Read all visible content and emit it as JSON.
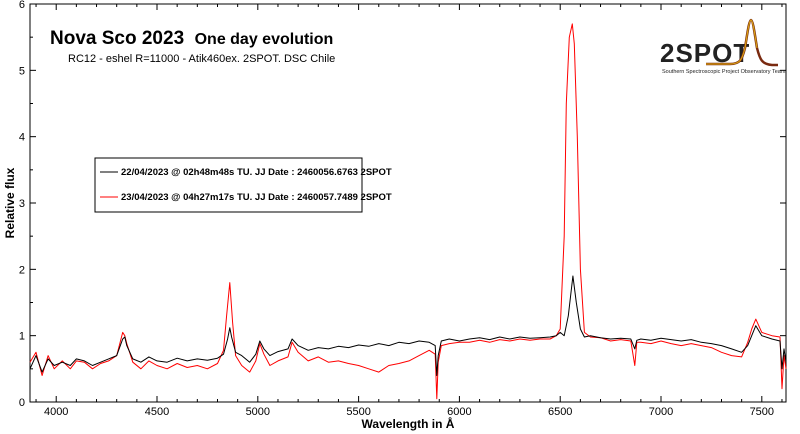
{
  "chart_data": {
    "type": "line",
    "title": "Nova Sco 2023",
    "subtitle": "One day evolution",
    "info": "RC12 - eshel R=11000 - Atik460ex. 2SPOT. DSC Chile",
    "xlabel": "Wavelength in Å",
    "ylabel": "Relative flux",
    "xlim": [
      3870,
      7620
    ],
    "ylim": [
      0,
      6
    ],
    "x_ticks": [
      "4000",
      "4500",
      "5000",
      "5500",
      "6000",
      "6500",
      "7000",
      "7500"
    ],
    "y_ticks": [
      "0",
      "1",
      "2",
      "3",
      "4",
      "5",
      "6"
    ],
    "grid": false,
    "legend_position": "upper-left",
    "colors": {
      "series_1": "#000000",
      "series_2": "#ff0000"
    },
    "logo": {
      "text": "2SPOT",
      "caption": "Southern Spectroscopic Project Observatory Team"
    },
    "series": [
      {
        "name": "22/04/2023 @ 02h48m48s TU.  JJ Date : 2460056.6763 2SPOT",
        "x": [
          3870,
          3900,
          3930,
          3960,
          3990,
          4030,
          4070,
          4100,
          4140,
          4180,
          4220,
          4260,
          4300,
          4330,
          4340,
          4350,
          4380,
          4420,
          4460,
          4500,
          4550,
          4600,
          4650,
          4700,
          4750,
          4800,
          4830,
          4850,
          4861,
          4870,
          4890,
          4920,
          4960,
          4990,
          5010,
          5030,
          5060,
          5100,
          5150,
          5170,
          5200,
          5250,
          5300,
          5350,
          5400,
          5450,
          5500,
          5550,
          5600,
          5650,
          5700,
          5750,
          5800,
          5850,
          5880,
          5888,
          5895,
          5910,
          5950,
          6000,
          6050,
          6100,
          6150,
          6200,
          6250,
          6300,
          6350,
          6400,
          6450,
          6480,
          6500,
          6520,
          6540,
          6563,
          6580,
          6600,
          6620,
          6650,
          6700,
          6750,
          6800,
          6850,
          6870,
          6880,
          6900,
          6950,
          7000,
          7050,
          7100,
          7150,
          7200,
          7250,
          7300,
          7350,
          7400,
          7430,
          7450,
          7470,
          7500,
          7550,
          7590,
          7600,
          7610,
          7620
        ],
        "y": [
          0.5,
          0.7,
          0.45,
          0.65,
          0.55,
          0.6,
          0.55,
          0.65,
          0.62,
          0.55,
          0.6,
          0.65,
          0.7,
          0.95,
          0.98,
          0.85,
          0.65,
          0.6,
          0.68,
          0.62,
          0.6,
          0.66,
          0.62,
          0.65,
          0.63,
          0.66,
          0.72,
          0.95,
          1.12,
          0.98,
          0.75,
          0.7,
          0.6,
          0.72,
          0.92,
          0.8,
          0.7,
          0.76,
          0.8,
          0.95,
          0.85,
          0.78,
          0.82,
          0.8,
          0.84,
          0.82,
          0.86,
          0.84,
          0.88,
          0.85,
          0.9,
          0.88,
          0.92,
          0.9,
          0.85,
          0.4,
          0.7,
          0.92,
          0.95,
          0.92,
          0.95,
          0.97,
          0.94,
          0.98,
          0.95,
          0.98,
          0.96,
          0.97,
          0.98,
          1.0,
          1.05,
          1.0,
          1.3,
          1.9,
          1.5,
          1.1,
          0.98,
          1.0,
          0.97,
          0.95,
          0.96,
          0.95,
          0.8,
          0.93,
          0.95,
          0.93,
          0.96,
          0.94,
          0.92,
          0.94,
          0.9,
          0.88,
          0.85,
          0.8,
          0.75,
          0.85,
          1.0,
          1.15,
          1.0,
          0.95,
          0.92,
          0.5,
          0.8,
          0.6
        ]
      },
      {
        "name": "23/04/2023 @ 04h27m17s TU.  JJ Date : 2460057.7489 2SPOT",
        "x": [
          3870,
          3900,
          3930,
          3960,
          3990,
          4030,
          4070,
          4100,
          4140,
          4180,
          4220,
          4260,
          4300,
          4330,
          4340,
          4350,
          4380,
          4420,
          4460,
          4500,
          4550,
          4600,
          4650,
          4700,
          4750,
          4800,
          4830,
          4845,
          4861,
          4875,
          4890,
          4920,
          4960,
          4990,
          5010,
          5030,
          5060,
          5100,
          5150,
          5170,
          5200,
          5250,
          5300,
          5350,
          5400,
          5450,
          5500,
          5550,
          5600,
          5650,
          5700,
          5750,
          5800,
          5850,
          5880,
          5888,
          5895,
          5910,
          5950,
          6000,
          6050,
          6100,
          6150,
          6200,
          6250,
          6300,
          6350,
          6400,
          6450,
          6480,
          6500,
          6520,
          6530,
          6545,
          6560,
          6570,
          6585,
          6600,
          6620,
          6650,
          6700,
          6750,
          6800,
          6850,
          6870,
          6880,
          6900,
          6950,
          7000,
          7050,
          7100,
          7150,
          7200,
          7250,
          7300,
          7350,
          7400,
          7430,
          7450,
          7470,
          7500,
          7550,
          7590,
          7600,
          7610,
          7620
        ],
        "y": [
          0.6,
          0.75,
          0.4,
          0.7,
          0.5,
          0.62,
          0.5,
          0.62,
          0.6,
          0.5,
          0.58,
          0.62,
          0.7,
          1.05,
          1.0,
          0.88,
          0.6,
          0.5,
          0.62,
          0.55,
          0.5,
          0.58,
          0.52,
          0.55,
          0.5,
          0.58,
          0.78,
          1.3,
          1.8,
          1.2,
          0.7,
          0.55,
          0.45,
          0.62,
          0.88,
          0.72,
          0.55,
          0.62,
          0.68,
          0.9,
          0.75,
          0.62,
          0.68,
          0.6,
          0.62,
          0.58,
          0.55,
          0.5,
          0.45,
          0.55,
          0.58,
          0.62,
          0.7,
          0.78,
          0.72,
          0.05,
          0.6,
          0.85,
          0.88,
          0.9,
          0.9,
          0.93,
          0.9,
          0.94,
          0.92,
          0.95,
          0.93,
          0.95,
          0.95,
          1.0,
          1.1,
          2.5,
          4.5,
          5.5,
          5.7,
          5.4,
          4.0,
          2.0,
          1.05,
          0.98,
          0.97,
          0.92,
          0.94,
          0.92,
          0.55,
          0.9,
          0.9,
          0.88,
          0.92,
          0.88,
          0.85,
          0.88,
          0.85,
          0.82,
          0.75,
          0.7,
          0.68,
          0.9,
          1.1,
          1.25,
          1.05,
          1.0,
          0.98,
          0.2,
          0.7,
          0.5
        ]
      }
    ]
  }
}
